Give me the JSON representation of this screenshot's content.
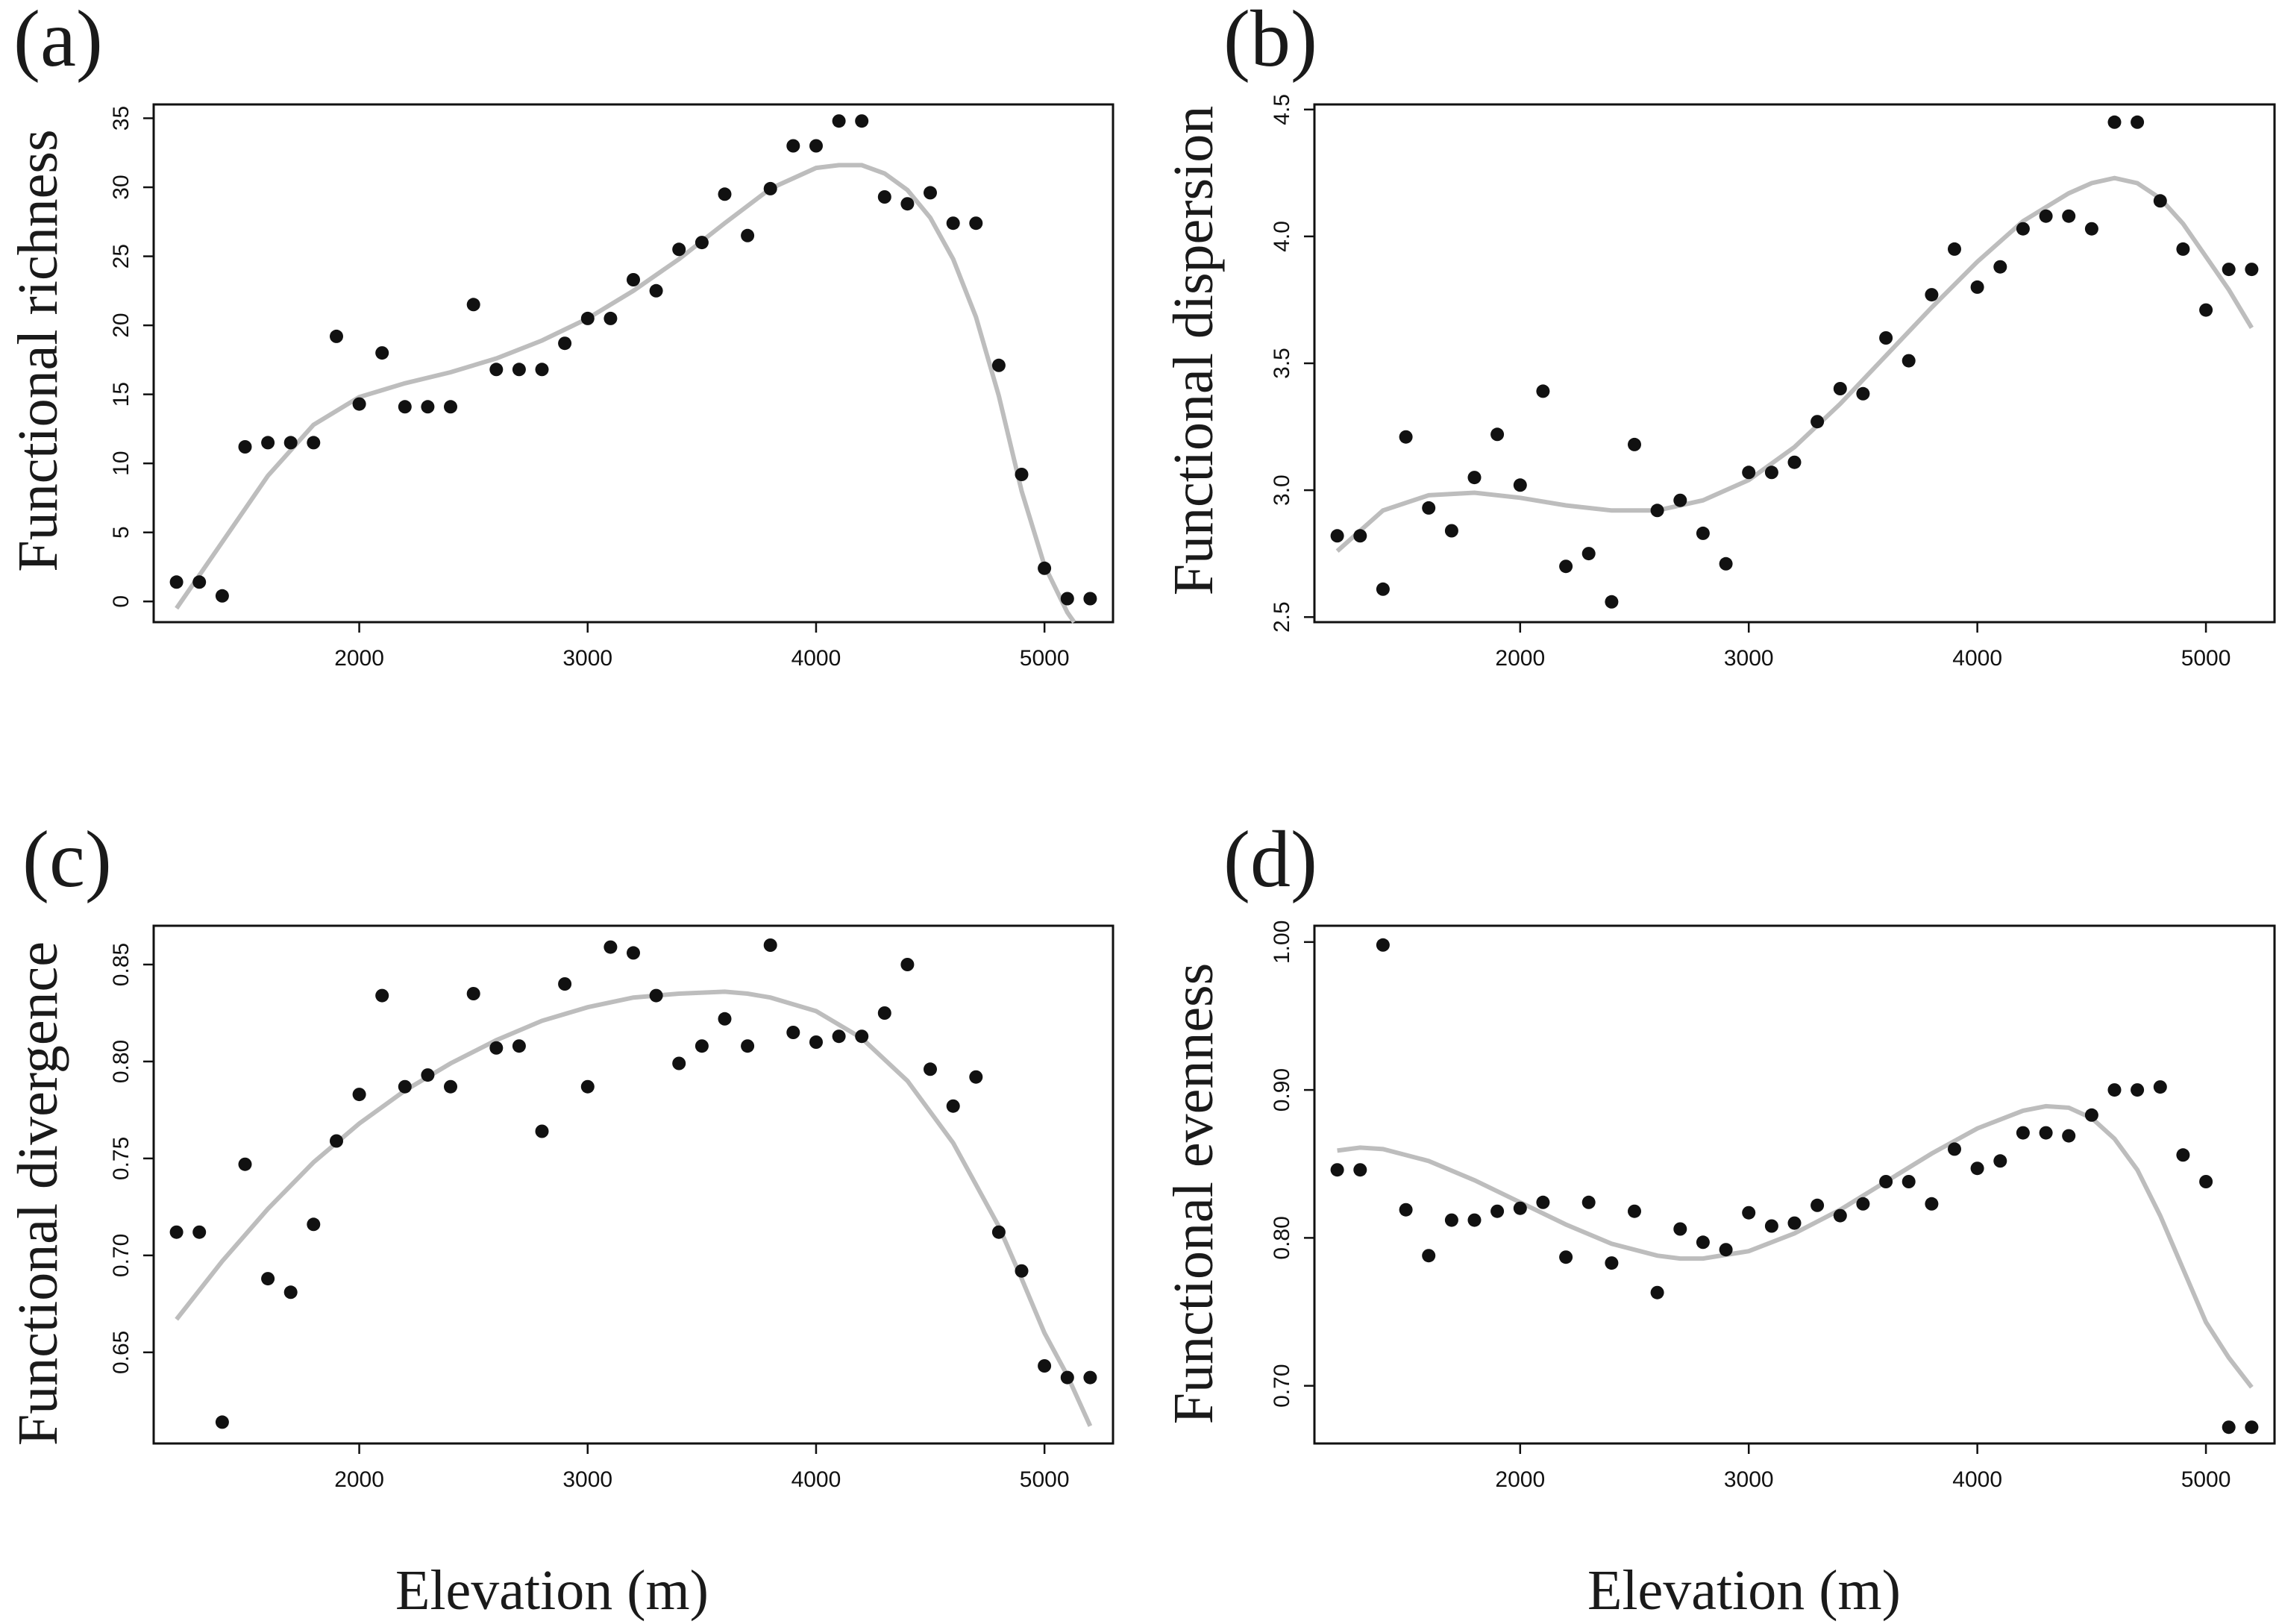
{
  "figure": {
    "shared_xlabel_left": "Elevation (m)",
    "shared_xlabel_right": "Elevation (m)"
  },
  "chart_data": [
    {
      "type": "scatter",
      "panel": "(a)",
      "title": "",
      "xlabel": "",
      "ylabel": "Functional richness",
      "xlim": [
        1100,
        5300
      ],
      "ylim": [
        -1.5,
        36
      ],
      "xticks": [
        2000,
        3000,
        4000,
        5000
      ],
      "yticks": [
        0,
        5,
        10,
        15,
        20,
        25,
        30,
        35
      ],
      "x": [
        1200,
        1300,
        1400,
        1500,
        1600,
        1700,
        1800,
        1900,
        2000,
        2100,
        2200,
        2300,
        2400,
        2500,
        2600,
        2700,
        2800,
        2900,
        3000,
        3100,
        3200,
        3300,
        3400,
        3500,
        3600,
        3700,
        3800,
        3900,
        4000,
        4100,
        4200,
        4300,
        4400,
        4500,
        4600,
        4700,
        4800,
        4900,
        5000,
        5100,
        5200
      ],
      "y": [
        1.4,
        1.4,
        0.4,
        11.2,
        11.5,
        11.5,
        11.5,
        19.2,
        14.3,
        18.0,
        14.1,
        14.1,
        14.1,
        21.5,
        16.8,
        16.8,
        16.8,
        18.7,
        20.5,
        20.5,
        23.3,
        22.5,
        25.5,
        26.0,
        29.5,
        26.5,
        29.9,
        33.0,
        33.0,
        34.8,
        34.8,
        29.3,
        28.8,
        29.6,
        27.4,
        27.4,
        17.1,
        9.2,
        2.4,
        0.2,
        0.2
      ],
      "fit_x": [
        1200,
        1400,
        1600,
        1800,
        2000,
        2200,
        2400,
        2600,
        2800,
        3000,
        3200,
        3400,
        3600,
        3800,
        4000,
        4100,
        4200,
        4300,
        4400,
        4500,
        4600,
        4700,
        4800,
        4900,
        5000,
        5100,
        5130
      ],
      "fit_y": [
        -0.5,
        4.3,
        9.1,
        12.8,
        14.8,
        15.8,
        16.6,
        17.6,
        18.9,
        20.5,
        22.5,
        24.8,
        27.4,
        29.9,
        31.4,
        31.6,
        31.6,
        31.0,
        29.8,
        27.8,
        24.8,
        20.6,
        14.9,
        8.0,
        2.6,
        -0.8,
        -1.5
      ],
      "series": [
        {
          "name": "observed",
          "marker": "point"
        },
        {
          "name": "fitted",
          "marker": "line"
        }
      ],
      "point_color": "#111111",
      "fit_color": "#bdbdbd"
    },
    {
      "type": "scatter",
      "panel": "(b)",
      "title": "",
      "xlabel": "",
      "ylabel": "Functional dispersion",
      "xlim": [
        1100,
        5300
      ],
      "ylim": [
        2.48,
        4.52
      ],
      "xticks": [
        2000,
        3000,
        4000,
        5000
      ],
      "yticks": [
        2.5,
        3.0,
        3.5,
        4.0,
        4.5
      ],
      "ytick_labels": [
        "2.5",
        "3.0",
        "3.5",
        "4.0",
        "4.5"
      ],
      "x": [
        1200,
        1300,
        1400,
        1500,
        1600,
        1700,
        1800,
        1900,
        2000,
        2100,
        2200,
        2300,
        2400,
        2500,
        2600,
        2700,
        2800,
        2900,
        3000,
        3100,
        3200,
        3300,
        3400,
        3500,
        3600,
        3700,
        3800,
        3900,
        4000,
        4100,
        4200,
        4300,
        4400,
        4500,
        4600,
        4700,
        4800,
        4900,
        5000,
        5100,
        5200
      ],
      "y": [
        2.82,
        2.82,
        2.61,
        3.21,
        2.93,
        2.84,
        3.05,
        3.22,
        3.02,
        3.39,
        2.7,
        2.75,
        2.56,
        3.18,
        2.92,
        2.96,
        2.83,
        2.71,
        3.07,
        3.07,
        3.11,
        3.27,
        3.4,
        3.38,
        3.6,
        3.51,
        3.77,
        3.95,
        3.8,
        3.88,
        4.03,
        4.08,
        4.08,
        4.03,
        4.45,
        4.45,
        4.14,
        3.95,
        3.71,
        3.87,
        3.87
      ],
      "fit_x": [
        1200,
        1400,
        1600,
        1800,
        2000,
        2200,
        2400,
        2600,
        2800,
        3000,
        3200,
        3400,
        3600,
        3800,
        4000,
        4200,
        4400,
        4500,
        4600,
        4700,
        4800,
        4900,
        5000,
        5100,
        5200
      ],
      "fit_y": [
        2.76,
        2.92,
        2.98,
        2.99,
        2.97,
        2.94,
        2.92,
        2.92,
        2.96,
        3.04,
        3.17,
        3.34,
        3.53,
        3.72,
        3.9,
        4.06,
        4.17,
        4.21,
        4.23,
        4.21,
        4.15,
        4.05,
        3.92,
        3.79,
        3.64
      ],
      "series": [
        {
          "name": "observed",
          "marker": "point"
        },
        {
          "name": "fitted",
          "marker": "line"
        }
      ],
      "point_color": "#111111",
      "fit_color": "#bdbdbd"
    },
    {
      "type": "scatter",
      "panel": "(c)",
      "title": "",
      "xlabel": "Elevation (m)",
      "ylabel": "Functional divergence",
      "xlim": [
        1100,
        5300
      ],
      "ylim": [
        0.603,
        0.87
      ],
      "xticks": [
        2000,
        3000,
        4000,
        5000
      ],
      "yticks": [
        0.65,
        0.7,
        0.75,
        0.8,
        0.85
      ],
      "ytick_labels": [
        "0.65",
        "0.70",
        "0.75",
        "0.80",
        "0.85"
      ],
      "x": [
        1200,
        1300,
        1400,
        1500,
        1600,
        1700,
        1800,
        1900,
        2000,
        2100,
        2200,
        2300,
        2400,
        2500,
        2600,
        2700,
        2800,
        2900,
        3000,
        3100,
        3200,
        3300,
        3400,
        3500,
        3600,
        3700,
        3800,
        3900,
        4000,
        4100,
        4200,
        4300,
        4400,
        4500,
        4600,
        4700,
        4800,
        4900,
        5000,
        5100,
        5200
      ],
      "y": [
        0.712,
        0.712,
        0.614,
        0.747,
        0.688,
        0.681,
        0.716,
        0.759,
        0.783,
        0.834,
        0.787,
        0.793,
        0.787,
        0.835,
        0.807,
        0.808,
        0.764,
        0.84,
        0.787,
        0.859,
        0.856,
        0.834,
        0.799,
        0.808,
        0.822,
        0.808,
        0.86,
        0.815,
        0.81,
        0.813,
        0.813,
        0.825,
        0.85,
        0.796,
        0.777,
        0.792,
        0.712,
        0.692,
        0.643,
        0.637,
        0.637
      ],
      "fit_x": [
        1200,
        1400,
        1600,
        1800,
        2000,
        2200,
        2400,
        2600,
        2800,
        3000,
        3200,
        3400,
        3600,
        3700,
        3800,
        4000,
        4200,
        4400,
        4600,
        4800,
        4900,
        5000,
        5100,
        5200
      ],
      "fit_y": [
        0.667,
        0.697,
        0.724,
        0.748,
        0.768,
        0.785,
        0.799,
        0.811,
        0.821,
        0.828,
        0.833,
        0.835,
        0.836,
        0.835,
        0.833,
        0.826,
        0.812,
        0.79,
        0.758,
        0.715,
        0.688,
        0.66,
        0.638,
        0.612
      ],
      "series": [
        {
          "name": "observed",
          "marker": "point"
        },
        {
          "name": "fitted",
          "marker": "line"
        }
      ],
      "point_color": "#111111",
      "fit_color": "#bdbdbd"
    },
    {
      "type": "scatter",
      "panel": "(d)",
      "title": "",
      "xlabel": "Elevation (m)",
      "ylabel": "Functional evenness",
      "xlim": [
        1100,
        5300
      ],
      "ylim": [
        0.661,
        1.011
      ],
      "xticks": [
        2000,
        3000,
        4000,
        5000
      ],
      "yticks": [
        0.7,
        0.8,
        0.9,
        1.0
      ],
      "ytick_labels": [
        "0.70",
        "0.80",
        "0.90",
        "1.00"
      ],
      "x": [
        1200,
        1300,
        1400,
        1500,
        1600,
        1700,
        1800,
        1900,
        2000,
        2100,
        2200,
        2300,
        2400,
        2500,
        2600,
        2700,
        2800,
        2900,
        3000,
        3100,
        3200,
        3300,
        3400,
        3500,
        3600,
        3700,
        3800,
        3900,
        4000,
        4100,
        4200,
        4300,
        4400,
        4500,
        4600,
        4700,
        4800,
        4900,
        5000,
        5100,
        5200
      ],
      "y": [
        0.846,
        0.846,
        0.998,
        0.819,
        0.788,
        0.812,
        0.812,
        0.818,
        0.82,
        0.824,
        0.787,
        0.824,
        0.783,
        0.818,
        0.763,
        0.806,
        0.797,
        0.792,
        0.817,
        0.808,
        0.81,
        0.822,
        0.815,
        0.823,
        0.838,
        0.838,
        0.823,
        0.86,
        0.847,
        0.852,
        0.871,
        0.871,
        0.869,
        0.883,
        0.9,
        0.9,
        0.902,
        0.856,
        0.838,
        0.672,
        0.672
      ],
      "fit_x": [
        1200,
        1300,
        1400,
        1600,
        1800,
        2000,
        2200,
        2400,
        2600,
        2700,
        2800,
        3000,
        3200,
        3400,
        3600,
        3800,
        4000,
        4200,
        4300,
        4400,
        4500,
        4600,
        4700,
        4800,
        4900,
        5000,
        5100,
        5200
      ],
      "fit_y": [
        0.859,
        0.861,
        0.86,
        0.852,
        0.839,
        0.824,
        0.809,
        0.796,
        0.788,
        0.786,
        0.786,
        0.791,
        0.803,
        0.819,
        0.838,
        0.857,
        0.874,
        0.886,
        0.889,
        0.888,
        0.881,
        0.867,
        0.846,
        0.815,
        0.779,
        0.743,
        0.719,
        0.699
      ],
      "series": [
        {
          "name": "observed",
          "marker": "point"
        },
        {
          "name": "fitted",
          "marker": "line"
        }
      ],
      "point_color": "#111111",
      "fit_color": "#bdbdbd"
    }
  ]
}
